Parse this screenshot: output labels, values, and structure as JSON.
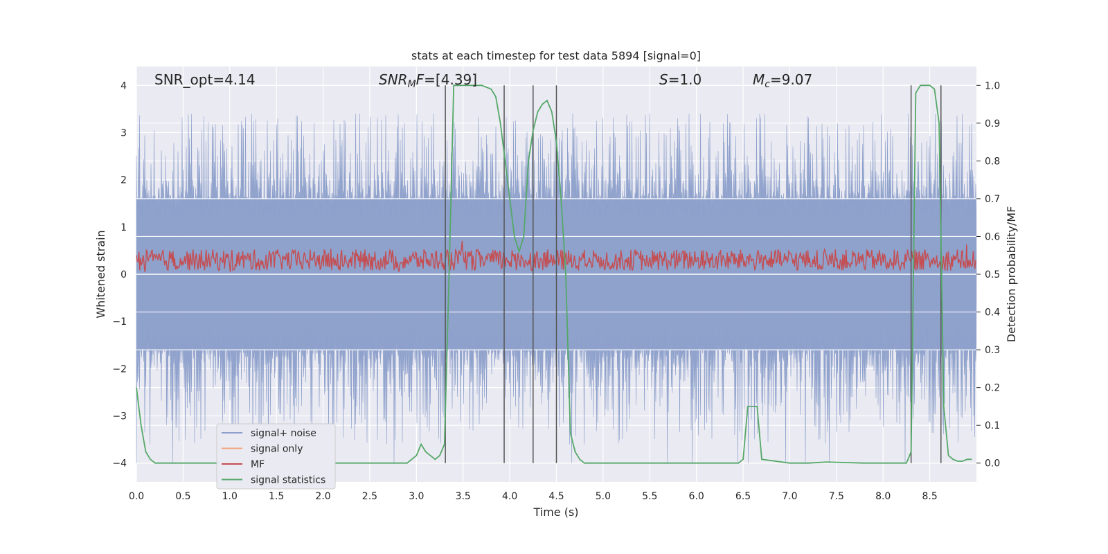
{
  "chart_data": {
    "type": "line",
    "title": "stats at each timestep for test data 5894 [signal=0]",
    "xlabel": "Time (s)",
    "ylabel_left": "Whitened strain",
    "ylabel_right": "Detection probability/MF",
    "xlim": [
      0.0,
      9.0
    ],
    "ylim_left": [
      -4.4,
      4.4
    ],
    "ylim_right": [
      -0.05,
      1.05
    ],
    "x_ticks": [
      "0.0",
      "0.5",
      "1.0",
      "1.5",
      "2.0",
      "2.5",
      "3.0",
      "3.5",
      "4.0",
      "4.5",
      "5.0",
      "5.5",
      "6.0",
      "6.5",
      "7.0",
      "7.5",
      "8.0",
      "8.5"
    ],
    "y_left_ticks": [
      "−4",
      "−3",
      "−2",
      "−1",
      "0",
      "1",
      "2",
      "3",
      "4"
    ],
    "y_right_ticks": [
      "0.0",
      "0.1",
      "0.2",
      "0.3",
      "0.4",
      "0.5",
      "0.6",
      "0.7",
      "0.8",
      "0.9",
      "1.0"
    ],
    "annotations": {
      "snr_opt": "SNR_opt=4.14",
      "snr_mf_main": "SNR",
      "snr_mf_sub": "M",
      "snr_mf_rest_it": "F",
      "snr_mf_value": "=[4.39]",
      "s_it": "S",
      "s_value": "=1.0",
      "mc_it": "M",
      "mc_sub": "c",
      "mc_value": "=9.07"
    },
    "legend": {
      "placement": "lower-left",
      "entries": [
        {
          "name": "signal+ noise",
          "color": "#8da0cb"
        },
        {
          "name": "signal only",
          "color": "#f4a582"
        },
        {
          "name": "MF",
          "color": "#c44e52"
        },
        {
          "name": "signal statistics",
          "color": "#55a868"
        }
      ]
    },
    "series": [
      {
        "name": "signal+ noise",
        "axis": "left",
        "color": "#8da0cb",
        "description_values": {
          "band_core": 1.6,
          "band_peaks_max": 3.4,
          "band_min": -4.0
        }
      },
      {
        "name": "MF",
        "axis": "left",
        "color": "#c44e52",
        "description_values": {
          "mean": 0.3,
          "max": 0.9,
          "min": 0.05
        }
      },
      {
        "name": "signal statistics",
        "axis": "right",
        "color": "#55a868",
        "x": [
          0.0,
          0.05,
          0.1,
          0.15,
          0.2,
          0.5,
          1.0,
          1.5,
          2.0,
          2.5,
          2.9,
          3.0,
          3.05,
          3.1,
          3.2,
          3.25,
          3.3,
          3.35,
          3.4,
          3.45,
          3.5,
          3.6,
          3.7,
          3.8,
          3.85,
          3.9,
          3.95,
          4.0,
          4.05,
          4.1,
          4.15,
          4.2,
          4.25,
          4.3,
          4.35,
          4.4,
          4.45,
          4.5,
          4.55,
          4.6,
          4.65,
          4.7,
          4.75,
          4.8,
          4.9,
          5.0,
          5.5,
          6.0,
          6.45,
          6.5,
          6.55,
          6.6,
          6.65,
          6.7,
          7.0,
          7.2,
          7.4,
          7.5,
          7.8,
          8.0,
          8.25,
          8.3,
          8.35,
          8.4,
          8.45,
          8.5,
          8.55,
          8.6,
          8.65,
          8.7,
          8.75,
          8.8,
          8.85,
          8.9,
          8.95
        ],
        "values": [
          0.2,
          0.1,
          0.03,
          0.01,
          0.0,
          0.0,
          0.0,
          0.0,
          0.0,
          0.0,
          0.0,
          0.02,
          0.05,
          0.03,
          0.01,
          0.02,
          0.05,
          0.5,
          1.0,
          1.0,
          1.0,
          1.0,
          1.0,
          0.99,
          0.97,
          0.9,
          0.8,
          0.7,
          0.6,
          0.56,
          0.6,
          0.8,
          0.88,
          0.93,
          0.95,
          0.96,
          0.93,
          0.85,
          0.7,
          0.5,
          0.08,
          0.03,
          0.01,
          0.0,
          0.0,
          0.0,
          0.0,
          0.0,
          0.0,
          0.01,
          0.15,
          0.15,
          0.15,
          0.01,
          0.0,
          0.0,
          0.003,
          0.002,
          0.0,
          0.0,
          0.0,
          0.03,
          0.98,
          1.0,
          1.0,
          1.0,
          0.99,
          0.9,
          0.15,
          0.02,
          0.01,
          0.005,
          0.005,
          0.01,
          0.01
        ]
      }
    ],
    "vertical_markers_x": [
      3.31,
      3.94,
      4.25,
      4.5,
      8.3,
      8.62
    ],
    "grid": true,
    "background": "#eaeaf2"
  }
}
